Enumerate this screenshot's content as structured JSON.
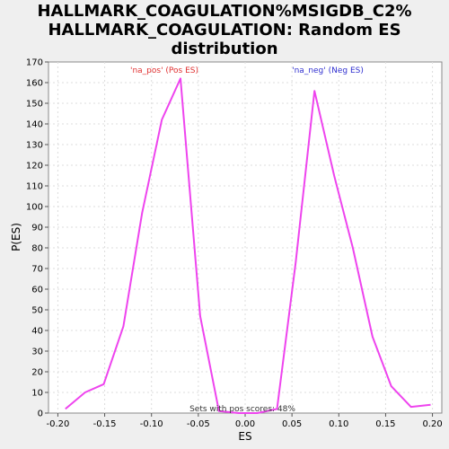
{
  "chart_data": {
    "type": "line",
    "title_lines": [
      "HALLMARK_COAGULATION%MSIGDB_C2%",
      "HALLMARK_COAGULATION: Random ES",
      "distribution"
    ],
    "xlabel": "ES",
    "ylabel": "P(ES)",
    "xlim": [
      -0.21,
      0.21
    ],
    "ylim": [
      0,
      170
    ],
    "xticks": [
      -0.2,
      -0.15,
      -0.1,
      -0.05,
      0.0,
      0.05,
      0.1,
      0.15,
      0.2
    ],
    "xtick_labels": [
      "-0.20",
      "-0.15",
      "-0.10",
      "-0.05",
      "0.00",
      "0.05",
      "0.10",
      "0.15",
      "0.20"
    ],
    "yticks": [
      0,
      10,
      20,
      30,
      40,
      50,
      60,
      70,
      80,
      90,
      100,
      110,
      120,
      130,
      140,
      150,
      160,
      170
    ],
    "grid": true,
    "line_color": "#ee44ee",
    "series": [
      {
        "x": [
          -0.192,
          -0.171,
          -0.151,
          -0.13,
          -0.11,
          -0.089,
          -0.069,
          -0.048,
          -0.028,
          -0.007,
          0.013,
          0.034,
          0.054,
          0.074,
          0.095,
          0.115,
          0.136,
          0.156,
          0.177,
          0.198
        ],
        "y": [
          2,
          10,
          14,
          42,
          97,
          142,
          162,
          47,
          1,
          0,
          0,
          2,
          73,
          156,
          115,
          80,
          37,
          13,
          3,
          4
        ]
      }
    ],
    "annotations": {
      "pos": {
        "text": "'na_pos' (Pos ES)",
        "color": "#e03030"
      },
      "neg": {
        "text": "'na_neg' (Neg ES)",
        "color": "#3030d0"
      },
      "footer": {
        "text": "Sets with pos scores: 48%",
        "color": "#333333"
      }
    }
  }
}
